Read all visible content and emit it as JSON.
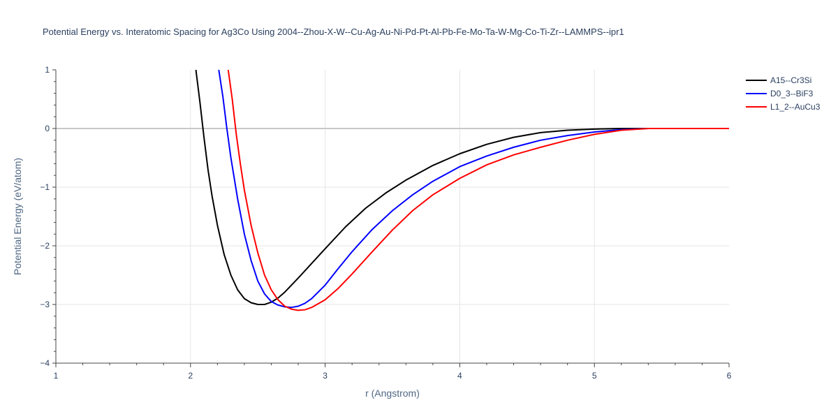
{
  "chart_data": {
    "type": "line",
    "title": "Potential Energy vs. Interatomic Spacing for Ag3Co Using 2004--Zhou-X-W--Cu-Ag-Au-Ni-Pd-Pt-Al-Pb-Fe-Mo-Ta-W-Mg-Co-Ti-Zr--LAMMPS--ipr1",
    "xlabel": "r (Angstrom)",
    "ylabel": "Potential Energy (eV/atom)",
    "xlim": [
      1,
      6
    ],
    "ylim": [
      -4,
      1
    ],
    "xticks": [
      "1",
      "2",
      "3",
      "4",
      "5",
      "6"
    ],
    "yticks": [
      "1",
      "0",
      "−1",
      "−2",
      "−3",
      "−4"
    ],
    "grid": true,
    "legend_position": "top-right",
    "series": [
      {
        "name": "A15--Cr3Si",
        "color": "#000000",
        "x": [
          2.04,
          2.07,
          2.1,
          2.13,
          2.16,
          2.2,
          2.25,
          2.3,
          2.35,
          2.4,
          2.45,
          2.5,
          2.55,
          2.6,
          2.65,
          2.7,
          2.8,
          2.9,
          3.0,
          3.15,
          3.3,
          3.45,
          3.6,
          3.8,
          4.0,
          4.2,
          4.4,
          4.6,
          4.8,
          5.0,
          5.2,
          5.4,
          5.7,
          6.0
        ],
        "y": [
          1.0,
          0.45,
          -0.15,
          -0.7,
          -1.15,
          -1.65,
          -2.15,
          -2.5,
          -2.75,
          -2.9,
          -2.97,
          -3.0,
          -3.0,
          -2.96,
          -2.89,
          -2.79,
          -2.55,
          -2.3,
          -2.05,
          -1.68,
          -1.36,
          -1.1,
          -0.88,
          -0.63,
          -0.43,
          -0.27,
          -0.15,
          -0.07,
          -0.03,
          -0.01,
          0.0,
          0.0,
          0.0,
          0.0
        ]
      },
      {
        "name": "D0_3--BiF3",
        "color": "#0000ff",
        "x": [
          2.21,
          2.24,
          2.27,
          2.3,
          2.35,
          2.4,
          2.45,
          2.5,
          2.55,
          2.6,
          2.65,
          2.7,
          2.75,
          2.8,
          2.85,
          2.9,
          3.0,
          3.1,
          3.2,
          3.35,
          3.5,
          3.65,
          3.8,
          4.0,
          4.2,
          4.4,
          4.6,
          4.8,
          5.0,
          5.2,
          5.4,
          5.7,
          6.0
        ],
        "y": [
          1.0,
          0.55,
          0.0,
          -0.5,
          -1.2,
          -1.8,
          -2.25,
          -2.6,
          -2.82,
          -2.95,
          -3.01,
          -3.04,
          -3.05,
          -3.03,
          -2.98,
          -2.9,
          -2.67,
          -2.38,
          -2.1,
          -1.72,
          -1.4,
          -1.13,
          -0.9,
          -0.65,
          -0.47,
          -0.32,
          -0.2,
          -0.12,
          -0.06,
          -0.02,
          0.0,
          0.0,
          0.0
        ]
      },
      {
        "name": "L1_2--AuCu3",
        "color": "#ff0000",
        "x": [
          2.28,
          2.31,
          2.34,
          2.37,
          2.4,
          2.45,
          2.5,
          2.55,
          2.6,
          2.65,
          2.7,
          2.75,
          2.8,
          2.85,
          2.9,
          3.0,
          3.1,
          3.2,
          3.35,
          3.5,
          3.65,
          3.8,
          4.0,
          4.2,
          4.4,
          4.6,
          4.8,
          5.0,
          5.2,
          5.4,
          5.7,
          6.0
        ],
        "y": [
          1.0,
          0.5,
          -0.1,
          -0.6,
          -1.05,
          -1.65,
          -2.12,
          -2.5,
          -2.75,
          -2.92,
          -3.03,
          -3.08,
          -3.1,
          -3.09,
          -3.05,
          -2.92,
          -2.72,
          -2.48,
          -2.1,
          -1.73,
          -1.4,
          -1.13,
          -0.85,
          -0.62,
          -0.45,
          -0.32,
          -0.2,
          -0.1,
          -0.03,
          0.0,
          0.0,
          0.0
        ]
      }
    ]
  }
}
